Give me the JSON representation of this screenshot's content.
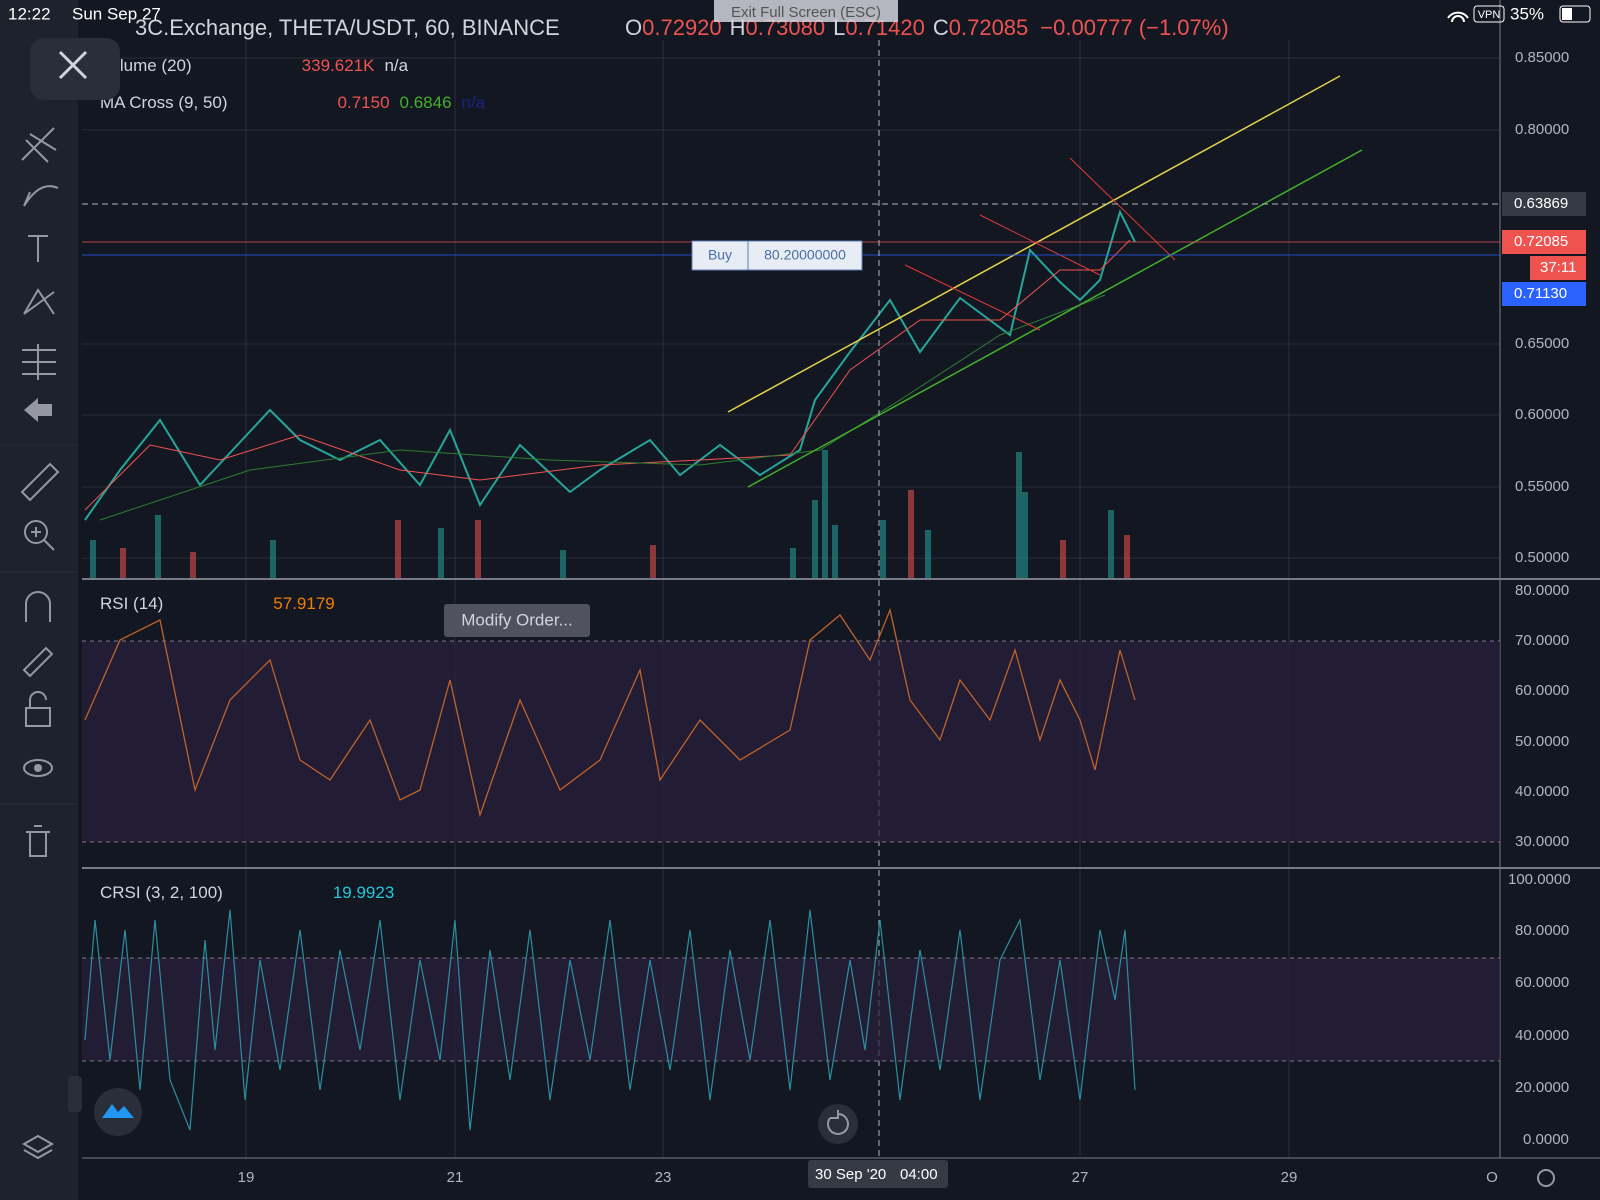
{
  "status_bar": {
    "time": "12:22",
    "date": "Sun Sep 27",
    "vpn": "VPN",
    "battery": "35%"
  },
  "banner": "Exit Full Screen (ESC)",
  "header": {
    "symbol": "3C.Exchange, THETA/USDT, 60, BINANCE",
    "o_label": "O",
    "o": "0.72920",
    "h_label": "H",
    "h": "0.73080",
    "l_label": "L",
    "l": "0.71420",
    "c_label": "C",
    "c": "0.72085",
    "change": "−0.00777 (−1.07%)"
  },
  "indicators": {
    "volume": {
      "name": "Volume (20)",
      "value": "339.621K",
      "extra": "n/a"
    },
    "ma_cross": {
      "name": "MA Cross (9, 50)",
      "fast": "0.7150",
      "slow": "0.6846",
      "extra": "n/a"
    },
    "rsi": {
      "name": "RSI (14)",
      "value": "57.9179"
    },
    "crsi": {
      "name": "CRSI (3, 2, 100)",
      "value": "19.9923"
    }
  },
  "price_axis": [
    "0.85000",
    "0.80000",
    "0.65000",
    "0.60000",
    "0.55000",
    "0.50000"
  ],
  "price_tags": {
    "crosshair": "0.63869",
    "last": "0.72085",
    "countdown": "37:11",
    "order": "0.71130"
  },
  "rsi_axis": [
    "80.0000",
    "70.0000",
    "60.0000",
    "50.0000",
    "40.0000",
    "30.0000"
  ],
  "crsi_axis": [
    "100.0000",
    "80.0000",
    "60.0000",
    "40.0000",
    "20.0000",
    "0.0000"
  ],
  "time_axis": [
    "19",
    "21",
    "23",
    "27",
    "29",
    "O"
  ],
  "crosshair_time": {
    "date": "30 Sep '20",
    "time": "04:00"
  },
  "order": {
    "side": "Buy",
    "quantity": "80.20000000"
  },
  "tooltip": "Modify Order..."
}
